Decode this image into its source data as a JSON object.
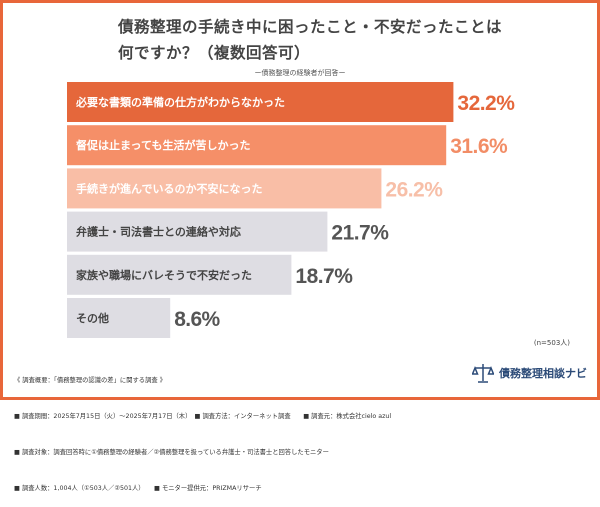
{
  "title_line1": "債務整理の手続き中に困ったこと・不安だったことは",
  "title_line2": "何ですか？（複数回答可）",
  "subtitle": "ー債務整理の経験者が回答ー",
  "sample_size": "(n=503人)",
  "chart_data": {
    "type": "bar",
    "orientation": "horizontal",
    "title": "債務整理の手続き中に困ったこと・不安だったことは何ですか？（複数回答可）",
    "categories": [
      "必要な書類の準備の仕方がわからなかった",
      "督促は止まっても生活が苦しかった",
      "手続きが進んでいるのか不安になった",
      "弁護士・司法書士との連絡や対応",
      "家族や職場にバレそうで不安だった",
      "その他"
    ],
    "values": [
      32.2,
      31.6,
      26.2,
      21.7,
      18.7,
      8.6
    ],
    "value_labels": [
      "32.2%",
      "31.6%",
      "26.2%",
      "21.7%",
      "18.7%",
      "8.6%"
    ],
    "unit": "%",
    "bar_colors": [
      "#e5673b",
      "#f58f68",
      "#f9bea6",
      "#dedde3",
      "#dedde3",
      "#dedde3"
    ],
    "label_colors": [
      "#e5673b",
      "#f28d66",
      "#f7bfa8",
      "#555555",
      "#555555",
      "#555555"
    ],
    "text_colors": [
      "#ffffff",
      "#ffffff",
      "#ffffff",
      "#444444",
      "#444444",
      "#444444"
    ],
    "grid": false
  },
  "notes": [
    "《 調査概要：「債務整理の認識の差」に関する調査 》",
    "■ 調査期間：2025年7月15日（火）〜2025年7月17日（木）　■ 調査方法：インターネット調査　　■ 調査元：株式会社cielo azul",
    "■ 調査対象：調査回答時に①債務整理の経験者／②債務整理を扱っている弁護士・司法書士と回答したモニター",
    "■ 調査人数：1,004人（①503人／②501人）　　■ モニター提供元：PRIZMAリサーチ"
  ],
  "logo_text": "債務整理相談ナビ",
  "accent_color": "#e8663a"
}
